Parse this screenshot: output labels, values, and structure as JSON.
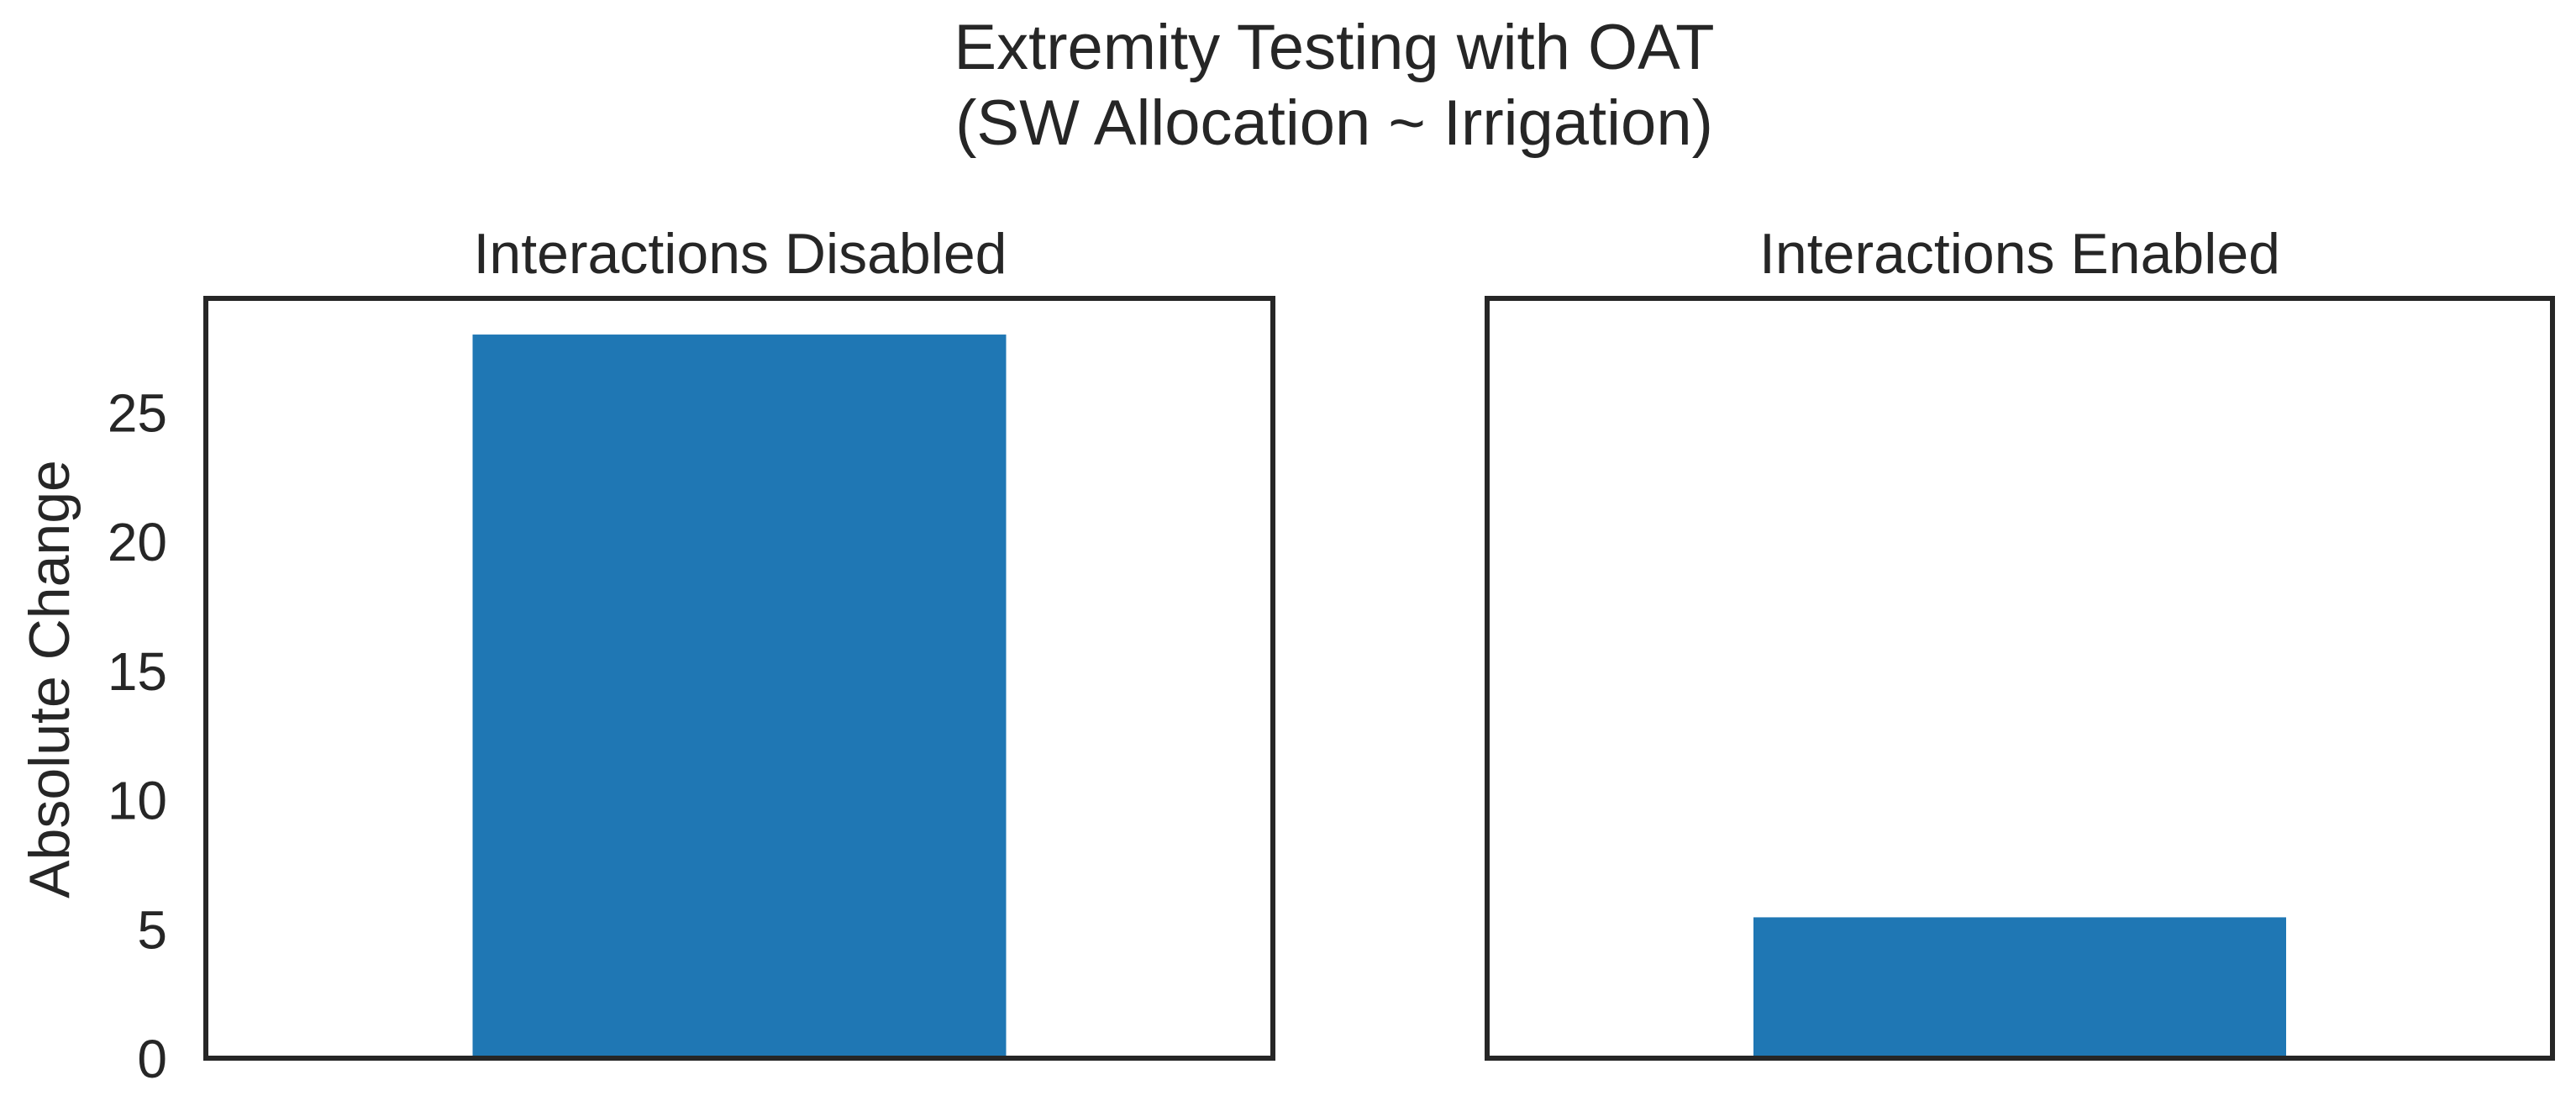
{
  "figure": {
    "title_line1": "Extremity Testing with OAT",
    "title_line2": "(SW Allocation ~ Irrigation)"
  },
  "colors": {
    "bar": "#1f77b4",
    "axes_edge": "#262626",
    "text": "#262626",
    "background": "#ffffff"
  },
  "chart_data": [
    {
      "type": "bar",
      "title": "Interactions Disabled",
      "ylabel": "Absolute Change",
      "xlabel": "",
      "categories": [
        ""
      ],
      "values": [
        28.0
      ],
      "ylim": [
        0,
        29.4
      ],
      "yticks": [
        0,
        5,
        10,
        15,
        20,
        25
      ],
      "grid": false,
      "legend": "none"
    },
    {
      "type": "bar",
      "title": "Interactions Enabled",
      "ylabel": "",
      "xlabel": "",
      "categories": [
        ""
      ],
      "values": [
        5.45
      ],
      "ylim": [
        0,
        29.4
      ],
      "yticks": [],
      "grid": false,
      "legend": "none"
    }
  ]
}
